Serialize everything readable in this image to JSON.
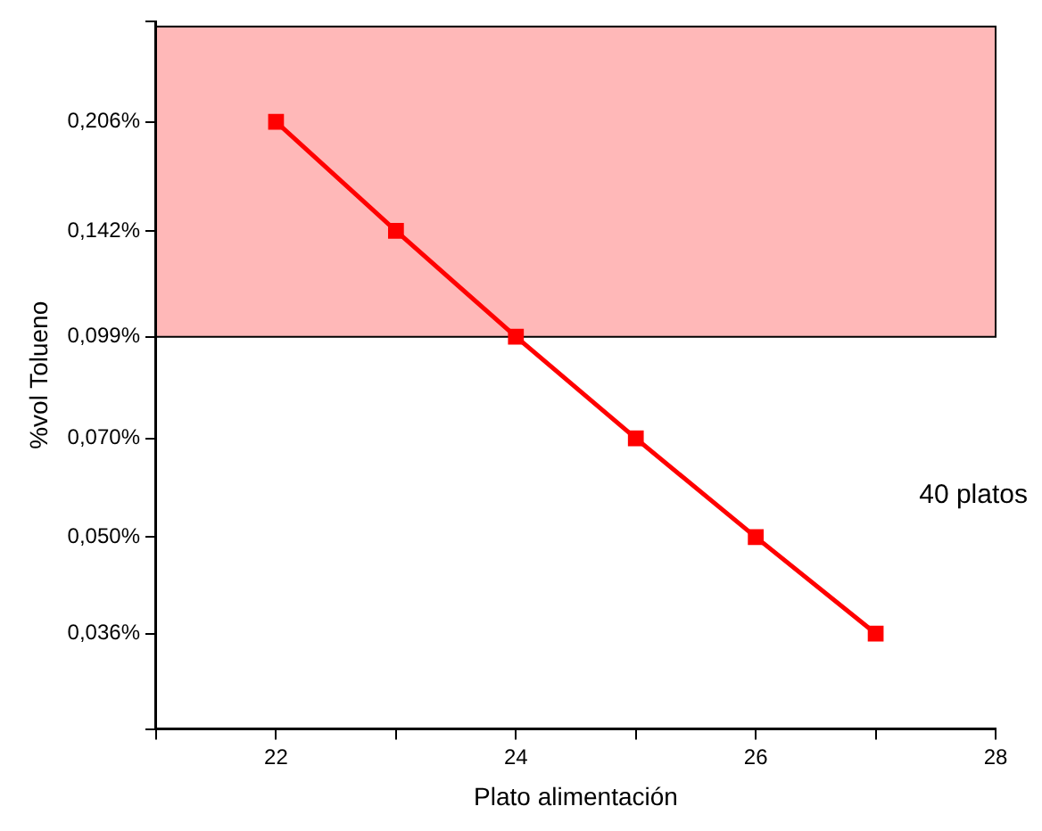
{
  "chart_data": {
    "type": "line",
    "xlabel": "Plato alimentación",
    "ylabel": "%vol Tolueno",
    "x": [
      22,
      23,
      24,
      25,
      26,
      27
    ],
    "series": [
      {
        "color": "#ff0000",
        "values": [
          0.206,
          0.142,
          0.099,
          0.07,
          0.05,
          0.036
        ]
      }
    ],
    "marker": "square",
    "line_style": "solid",
    "log": "y",
    "grid": false,
    "legend": false,
    "xlim": [
      21,
      28
    ],
    "xticks": [
      {
        "value": 21,
        "label": null
      },
      22,
      {
        "value": 23,
        "label": null
      },
      24,
      {
        "value": 25,
        "label": null
      },
      26,
      {
        "value": 27,
        "label": null
      },
      28
    ],
    "ylim": [
      0.026,
      0.29
    ],
    "yticks": [
      {
        "value": 0.026,
        "label": null
      },
      {
        "value": 0.036,
        "label": "0,036%"
      },
      {
        "value": 0.05,
        "label": "0,050%"
      },
      {
        "value": 0.07,
        "label": "0,070%"
      },
      {
        "value": 0.099,
        "label": "0,099%"
      },
      {
        "value": 0.142,
        "label": "0,142%"
      },
      {
        "value": 0.206,
        "label": "0,206%"
      },
      {
        "value": 0.29,
        "label": null
      }
    ],
    "bands": [
      {
        "axis": "y",
        "from": 0.099,
        "to": 0.285,
        "color": "#ff0000"
      }
    ],
    "annotations": [
      "40 platos"
    ]
  }
}
